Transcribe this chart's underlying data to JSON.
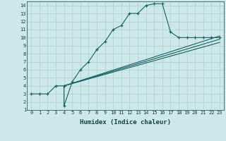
{
  "xlabel": "Humidex (Indice chaleur)",
  "bg_color": "#cce8e8",
  "grid_color": "#b0d0d0",
  "line_color": "#1a6060",
  "xlim": [
    -0.5,
    23.5
  ],
  "ylim": [
    1,
    14.5
  ],
  "xticks": [
    0,
    1,
    2,
    3,
    4,
    5,
    6,
    7,
    8,
    9,
    10,
    11,
    12,
    13,
    14,
    15,
    16,
    17,
    18,
    19,
    20,
    21,
    22,
    23
  ],
  "yticks": [
    1,
    2,
    3,
    4,
    5,
    6,
    7,
    8,
    9,
    10,
    11,
    12,
    13,
    14
  ],
  "curve1_x": [
    0,
    1,
    2,
    3,
    4,
    4,
    5,
    6,
    7,
    8,
    9,
    10,
    11,
    12,
    13,
    14,
    15,
    16,
    17,
    18,
    19,
    20,
    21,
    22,
    23
  ],
  "curve1_y": [
    3,
    3,
    3,
    4,
    4,
    1.5,
    4.5,
    6,
    7,
    8.5,
    9.5,
    11,
    11.5,
    13,
    13,
    14,
    14.2,
    14.2,
    10.7,
    10,
    10,
    10,
    10,
    10,
    10
  ],
  "line2_x": [
    4,
    23
  ],
  "line2_y": [
    4,
    10.2
  ],
  "line3_x": [
    4,
    23
  ],
  "line3_y": [
    4,
    9.8
  ],
  "line4_x": [
    4,
    23
  ],
  "line4_y": [
    4,
    9.4
  ],
  "font_size_ticks": 5,
  "font_size_xlabel": 6.5
}
